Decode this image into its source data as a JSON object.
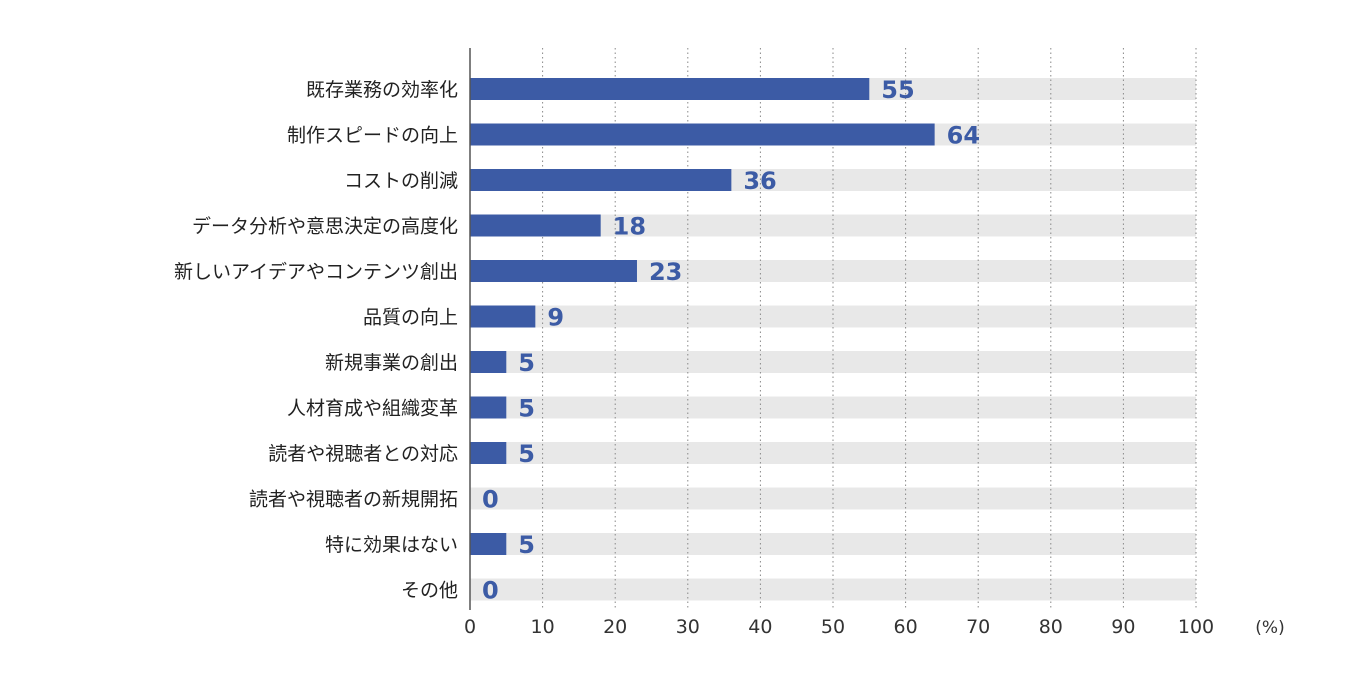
{
  "chart_data": {
    "type": "bar",
    "orientation": "horizontal",
    "categories": [
      "既存業務の効率化",
      "制作スピードの向上",
      "コストの削減",
      "データ分析や意思決定の高度化",
      "新しいアイデアやコンテンツ創出",
      "品質の向上",
      "新規事業の創出",
      "人材育成や組織変革",
      "読者や視聴者との対応",
      "読者や視聴者の新規開拓",
      "特に効果はない",
      "その他"
    ],
    "values": [
      55,
      64,
      36,
      18,
      23,
      9,
      5,
      5,
      5,
      0,
      5,
      0
    ],
    "value_labels": [
      "55",
      "64",
      "36",
      "18",
      "23",
      "9",
      "5",
      "5",
      "5",
      "0",
      "5",
      "0"
    ],
    "xlim": [
      0,
      100
    ],
    "x_ticks": [
      0,
      10,
      20,
      30,
      40,
      50,
      60,
      70,
      80,
      90,
      100
    ],
    "x_tick_labels": [
      "0",
      "10",
      "20",
      "30",
      "40",
      "50",
      "60",
      "70",
      "80",
      "90",
      "100"
    ],
    "unit_label": "(%)",
    "grid": true,
    "title": "",
    "xlabel": "",
    "ylabel": ""
  },
  "colors": {
    "bar": "#3c5ba5",
    "track": "#e8e8e8",
    "value_text": "#3c5ba5",
    "axis": "#555555",
    "grid": "#888888"
  }
}
